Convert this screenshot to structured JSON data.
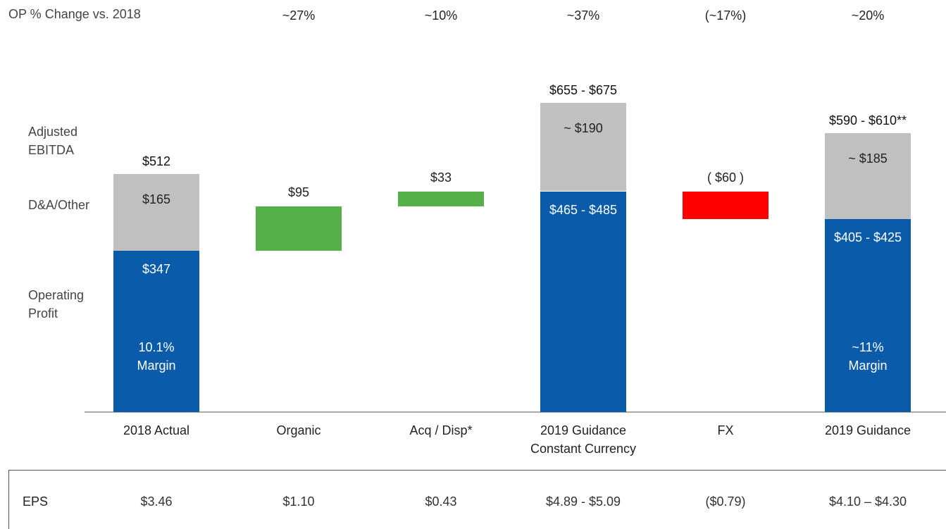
{
  "chart_data": {
    "type": "waterfall",
    "change_row": {
      "label": "OP % Change vs. 2018",
      "values": [
        "~27%",
        "~10%",
        "~37%",
        "(~17%)",
        "~20%"
      ]
    },
    "categories": [
      "2018 Actual",
      "Organic",
      "Acq / Disp*",
      "2019 Guidance Constant Currency",
      "FX",
      "2019 Guidance"
    ],
    "ylim": [
      0,
      700
    ],
    "total_name": "Adjusted EBITDA",
    "totals": {
      "values": [
        512,
        null,
        null,
        [
          655,
          675
        ],
        null,
        [
          590,
          610
        ]
      ],
      "value_labels": [
        "$512",
        null,
        null,
        "$655 - $675",
        null,
        "$590 - $610**"
      ]
    },
    "series": [
      {
        "name": "Operating Profit",
        "color": "#0a5cab",
        "values": [
          347,
          null,
          null,
          [
            465,
            485
          ],
          null,
          [
            405,
            425
          ]
        ],
        "value_labels": [
          "$347",
          null,
          null,
          "$465 - $485",
          null,
          "$405 - $425"
        ]
      },
      {
        "name": "D&A/Other",
        "color": "#c0c0c0",
        "values": [
          165,
          null,
          null,
          190,
          null,
          185
        ],
        "value_labels": [
          "$165",
          null,
          null,
          "~ $190",
          null,
          "~ $185"
        ]
      },
      {
        "name": "Change",
        "color": "#55b04a",
        "negative_color": "#ff0000",
        "values": [
          null,
          95,
          33,
          null,
          -60,
          null
        ],
        "value_labels": [
          null,
          "$95",
          "$33",
          null,
          "( $60 )",
          null
        ]
      }
    ],
    "margin_labels": [
      "10.1% Margin",
      null,
      null,
      null,
      null,
      "~11% Margin"
    ],
    "eps_row": {
      "label": "EPS",
      "values": [
        "$3.46",
        "$1.10",
        "$0.43",
        "$4.89 - $5.09",
        "($0.79)",
        "$4.10 – $4.30"
      ]
    }
  }
}
